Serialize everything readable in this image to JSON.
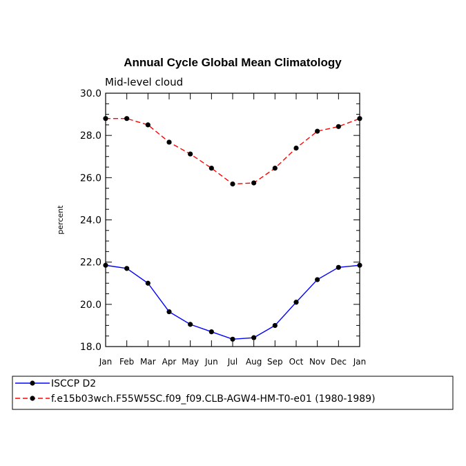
{
  "chart_data": {
    "type": "line",
    "title": "Annual Cycle Global Mean Climatology",
    "subtitle": "Mid-level cloud",
    "ylabel": "percent",
    "xlabel": "",
    "ylim": [
      18.0,
      30.0
    ],
    "y_ticks": [
      "18.0",
      "20.0",
      "22.0",
      "24.0",
      "26.0",
      "28.0",
      "30.0"
    ],
    "categories": [
      "Jan",
      "Feb",
      "Mar",
      "Apr",
      "May",
      "Jun",
      "Jul",
      "Aug",
      "Sep",
      "Oct",
      "Nov",
      "Dec",
      "Jan"
    ],
    "series": [
      {
        "name": "ISCCP D2",
        "color": "#0000ff",
        "line_style": "solid",
        "marker": "filled-circle",
        "values": [
          21.85,
          21.7,
          21.0,
          19.65,
          19.05,
          18.7,
          18.35,
          18.42,
          19.0,
          20.1,
          21.17,
          21.75,
          21.85
        ]
      },
      {
        "name": "f.e15b03wch.F55W5SC.f09_f09.CLB-AGW4-HM-T0-e01 (1980-1989)",
        "color": "#ff0000",
        "line_style": "dashed",
        "marker": "filled-circle",
        "values": [
          28.8,
          28.8,
          28.5,
          27.68,
          27.12,
          26.45,
          25.7,
          25.75,
          26.45,
          27.4,
          28.2,
          28.42,
          28.8
        ]
      }
    ],
    "legend_placement": "bottom",
    "grid": false
  }
}
